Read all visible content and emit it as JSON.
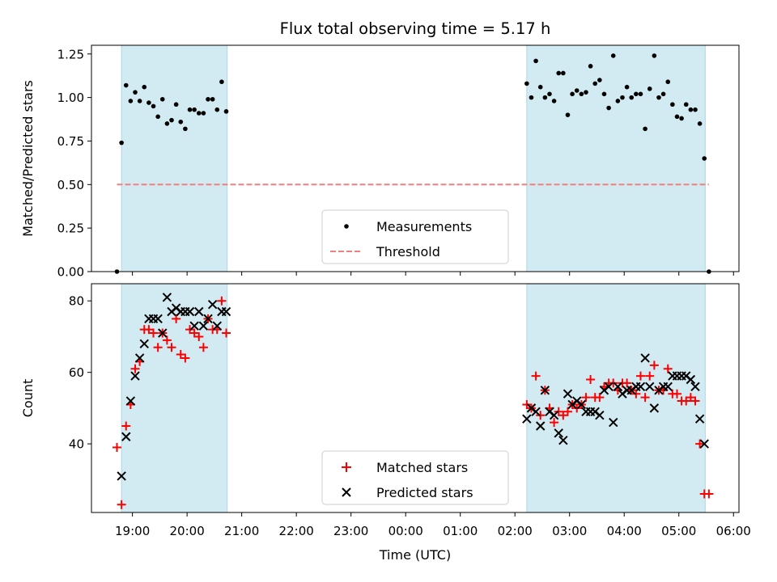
{
  "chart_data": [
    {
      "type": "scatter",
      "title": "Flux total observing time = 5.17 h",
      "xlabel": "",
      "ylabel": "Matched/Predicted stars",
      "x_range": [
        "18:15",
        "06:06"
      ],
      "ylim": [
        0,
        1.3
      ],
      "yticks": [
        "0.00",
        "0.25",
        "0.50",
        "0.75",
        "1.00",
        "1.25"
      ],
      "shaded_intervals": [
        [
          "18:48",
          "20:44"
        ],
        [
          "02:13",
          "05:29"
        ]
      ],
      "shade_color": "#add8e6",
      "legend": {
        "placement": "lower-center",
        "entries": [
          "Measurements",
          "Threshold"
        ]
      },
      "threshold": {
        "value": 0.5,
        "color": "#f08080"
      },
      "series": [
        {
          "name": "Measurements",
          "color": "#000000",
          "x": [
            "18:43",
            "18:48",
            "18:53",
            "18:58",
            "19:03",
            "19:08",
            "19:13",
            "19:18",
            "19:23",
            "19:28",
            "19:33",
            "19:38",
            "19:43",
            "19:48",
            "19:53",
            "19:58",
            "20:03",
            "20:08",
            "20:13",
            "20:18",
            "20:23",
            "20:28",
            "20:33",
            "20:38",
            "20:43",
            "02:13",
            "02:18",
            "02:23",
            "02:28",
            "02:33",
            "02:38",
            "02:43",
            "02:48",
            "02:53",
            "02:58",
            "03:03",
            "03:08",
            "03:13",
            "03:18",
            "03:23",
            "03:28",
            "03:33",
            "03:38",
            "03:43",
            "03:48",
            "03:53",
            "03:58",
            "04:03",
            "04:08",
            "04:13",
            "04:18",
            "04:23",
            "04:28",
            "04:33",
            "04:38",
            "04:43",
            "04:48",
            "04:53",
            "04:58",
            "05:03",
            "05:08",
            "05:13",
            "05:18",
            "05:23",
            "05:28",
            "05:33"
          ],
          "y": [
            0.0,
            0.74,
            1.07,
            0.98,
            1.03,
            0.98,
            1.06,
            0.97,
            0.95,
            0.89,
            0.99,
            0.85,
            0.87,
            0.96,
            0.86,
            0.82,
            0.93,
            0.93,
            0.91,
            0.91,
            0.99,
            0.99,
            0.93,
            1.09,
            0.92,
            1.08,
            1.0,
            1.21,
            1.06,
            1.0,
            1.02,
            0.98,
            1.14,
            1.14,
            0.9,
            1.02,
            1.04,
            1.02,
            1.03,
            1.18,
            1.08,
            1.1,
            1.02,
            0.94,
            1.24,
            0.98,
            1.0,
            1.06,
            1.0,
            1.02,
            1.02,
            0.82,
            1.05,
            1.24,
            1.0,
            1.02,
            1.09,
            0.96,
            0.89,
            0.88,
            0.96,
            0.93,
            0.93,
            0.85,
            0.65,
            0.0
          ]
        }
      ]
    },
    {
      "type": "scatter",
      "xlabel": "Time (UTC)",
      "ylabel": "Count",
      "x_range": [
        "18:15",
        "06:06"
      ],
      "ylim": [
        20.8,
        84.8
      ],
      "yticks": [
        "40",
        "60",
        "80"
      ],
      "xticks": [
        "19:00",
        "20:00",
        "21:00",
        "22:00",
        "23:00",
        "00:00",
        "01:00",
        "02:00",
        "03:00",
        "04:00",
        "05:00",
        "06:00"
      ],
      "shaded_intervals": [
        [
          "18:48",
          "20:44"
        ],
        [
          "02:13",
          "05:29"
        ]
      ],
      "shade_color": "#add8e6",
      "legend": {
        "placement": "lower-center",
        "entries": [
          "Matched stars",
          "Predicted stars"
        ]
      },
      "series": [
        {
          "name": "Matched stars",
          "marker": "plus",
          "color": "#ff0000",
          "x": [
            "18:43",
            "18:48",
            "18:53",
            "18:58",
            "19:03",
            "19:08",
            "19:13",
            "19:18",
            "19:23",
            "19:28",
            "19:33",
            "19:38",
            "19:43",
            "19:48",
            "19:53",
            "19:58",
            "20:03",
            "20:08",
            "20:13",
            "20:18",
            "20:23",
            "20:28",
            "20:33",
            "20:38",
            "20:43",
            "02:13",
            "02:18",
            "02:23",
            "02:28",
            "02:33",
            "02:38",
            "02:43",
            "02:48",
            "02:53",
            "02:58",
            "03:03",
            "03:08",
            "03:13",
            "03:18",
            "03:23",
            "03:28",
            "03:33",
            "03:38",
            "03:43",
            "03:48",
            "03:53",
            "03:58",
            "04:03",
            "04:08",
            "04:13",
            "04:18",
            "04:23",
            "04:28",
            "04:33",
            "04:38",
            "04:43",
            "04:48",
            "04:53",
            "04:58",
            "05:03",
            "05:08",
            "05:13",
            "05:18",
            "05:23",
            "05:28",
            "05:33"
          ],
          "y": [
            39,
            23,
            45,
            51,
            61,
            63,
            72,
            72,
            71,
            67,
            71,
            69,
            67,
            75,
            65,
            64,
            72,
            71,
            70,
            67,
            75,
            72,
            72,
            80,
            71,
            51,
            50,
            59,
            48,
            55,
            50,
            46,
            49,
            48,
            49,
            51,
            50,
            51,
            53,
            58,
            53,
            53,
            56,
            57,
            57,
            55,
            57,
            57,
            55,
            54,
            59,
            53,
            59,
            62,
            55,
            55,
            61,
            54,
            54,
            52,
            52,
            53,
            52,
            40,
            26,
            26
          ]
        },
        {
          "name": "Predicted stars",
          "marker": "x",
          "color": "#000000",
          "x": [
            "18:48",
            "18:53",
            "18:58",
            "19:03",
            "19:08",
            "19:13",
            "19:18",
            "19:23",
            "19:28",
            "19:33",
            "19:38",
            "19:43",
            "19:48",
            "19:53",
            "19:58",
            "20:03",
            "20:08",
            "20:13",
            "20:18",
            "20:23",
            "20:28",
            "20:33",
            "20:38",
            "20:43",
            "02:13",
            "02:18",
            "02:23",
            "02:28",
            "02:33",
            "02:38",
            "02:43",
            "02:48",
            "02:53",
            "02:58",
            "03:03",
            "03:08",
            "03:13",
            "03:18",
            "03:23",
            "03:28",
            "03:33",
            "03:38",
            "03:43",
            "03:48",
            "03:53",
            "03:58",
            "04:03",
            "04:08",
            "04:13",
            "04:18",
            "04:23",
            "04:28",
            "04:33",
            "04:38",
            "04:43",
            "04:48",
            "04:53",
            "04:58",
            "05:03",
            "05:08",
            "05:13",
            "05:18",
            "05:23",
            "05:28"
          ],
          "y": [
            31,
            42,
            52,
            59,
            64,
            68,
            75,
            75,
            75,
            71,
            81,
            77,
            78,
            77,
            77,
            77,
            73,
            77,
            73,
            75,
            79,
            73,
            77,
            77,
            47,
            50,
            49,
            45,
            55,
            49,
            48,
            43,
            41,
            54,
            51,
            52,
            51,
            49,
            49,
            49,
            48,
            55,
            56,
            46,
            56,
            54,
            55,
            55,
            56,
            56,
            64,
            56,
            50,
            55,
            56,
            56,
            59,
            59,
            59,
            59,
            58,
            56,
            47,
            40
          ]
        }
      ]
    }
  ]
}
